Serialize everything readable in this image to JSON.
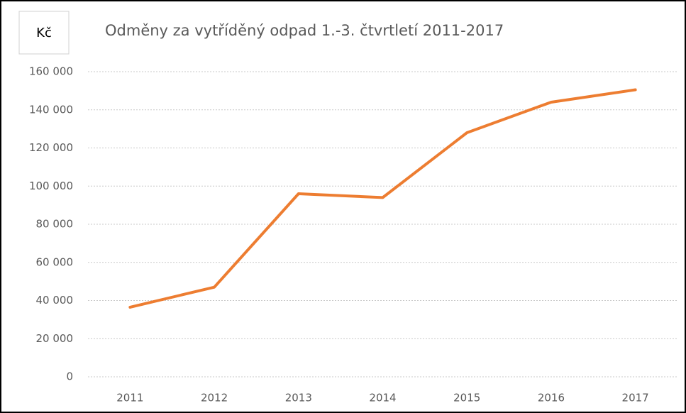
{
  "chart_data": {
    "type": "line",
    "title": "Odměny za vytříděný odpad 1.-3. čtvrtletí  2011-2017",
    "y_label": "Kč",
    "categories": [
      "2011",
      "2012",
      "2013",
      "2014",
      "2015",
      "2016",
      "2017"
    ],
    "series": [
      {
        "name": "Odměny",
        "color": "#ed7d31",
        "values": [
          36500,
          47000,
          96000,
          94000,
          128000,
          144000,
          150500
        ]
      }
    ],
    "ylim": [
      0,
      160000
    ],
    "yticks": [
      0,
      {
        "value": 20000,
        "label": "20 000"
      },
      {
        "value": 40000,
        "label": "40 000"
      },
      {
        "value": 60000,
        "label": "60 000"
      },
      {
        "value": 80000,
        "label": "80 000"
      },
      {
        "value": 100000,
        "label": "100 000"
      },
      {
        "value": 120000,
        "label": "120 000"
      },
      {
        "value": 140000,
        "label": "140 000"
      },
      {
        "value": 160000,
        "label": "160 000"
      }
    ],
    "grid": true
  }
}
